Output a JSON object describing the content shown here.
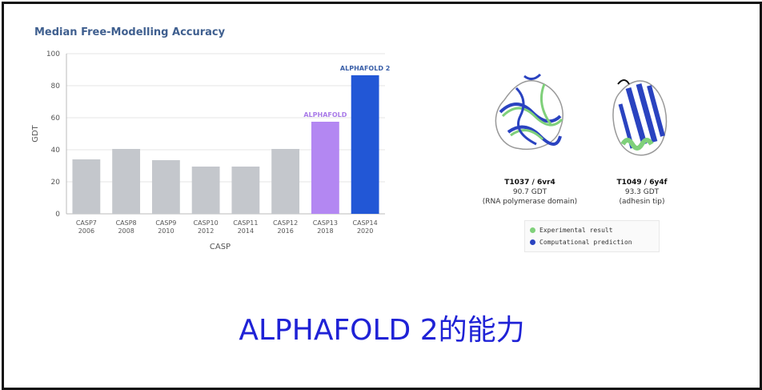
{
  "chart_data": {
    "type": "bar",
    "title": "Median Free-Modelling Accuracy",
    "xlabel": "CASP",
    "ylabel": "GDT",
    "ylim": [
      0,
      100
    ],
    "yticks": [
      0,
      20,
      40,
      60,
      80,
      100
    ],
    "categories": [
      {
        "name": "CASP7",
        "year": "2006"
      },
      {
        "name": "CASP8",
        "year": "2008"
      },
      {
        "name": "CASP9",
        "year": "2010"
      },
      {
        "name": "CASP10",
        "year": "2012"
      },
      {
        "name": "CASP11",
        "year": "2014"
      },
      {
        "name": "CASP12",
        "year": "2016"
      },
      {
        "name": "CASP13",
        "year": "2018"
      },
      {
        "name": "CASP14",
        "year": "2020"
      }
    ],
    "values": [
      34,
      40.5,
      33.5,
      29.5,
      29.5,
      40.5,
      57.5,
      86.5
    ],
    "colors": [
      "#c4c7cc",
      "#c4c7cc",
      "#c4c7cc",
      "#c4c7cc",
      "#c4c7cc",
      "#c4c7cc",
      "#b387f2",
      "#2257d6"
    ],
    "bar_labels": [
      {
        "index": 6,
        "text": "ALPHAFOLD",
        "color": "#a97be8"
      },
      {
        "index": 7,
        "text": "ALPHAFOLD 2",
        "color": "#3a5fa8"
      }
    ],
    "grid": true
  },
  "proteins": [
    {
      "id": "T1037 / 6vr4",
      "gdt": "90.7 GDT",
      "desc": "(RNA polymerase domain)"
    },
    {
      "id": "T1049 / 6y4f",
      "gdt": "93.3 GDT",
      "desc": "(adhesin tip)"
    }
  ],
  "legend": {
    "experimental": {
      "label": "Experimental result",
      "color": "#7fd07a"
    },
    "computational": {
      "label": "Computational prediction",
      "color": "#2a43c0"
    }
  },
  "caption": "ALPHAFOLD 2的能力"
}
